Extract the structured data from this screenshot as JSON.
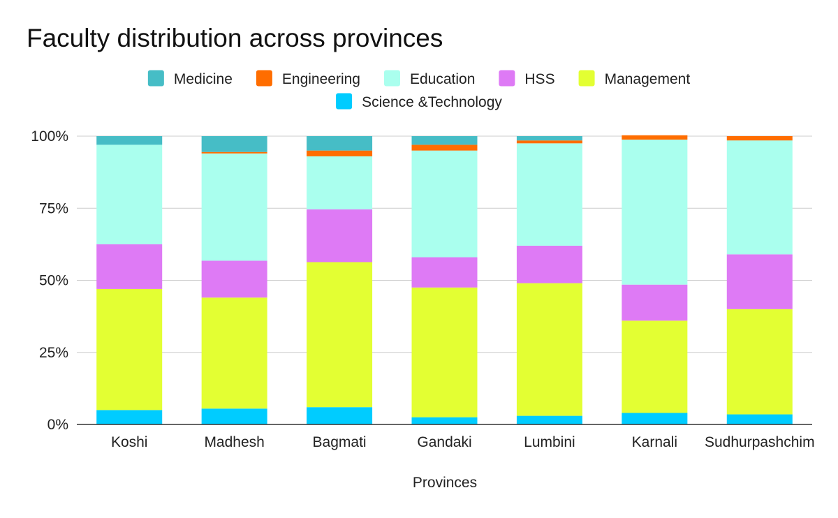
{
  "chart_data": {
    "type": "bar",
    "stacked": true,
    "normalized": true,
    "title": "Faculty distribution across provinces",
    "xlabel": "Provinces",
    "ylabel": "",
    "ylim": [
      0,
      100
    ],
    "y_ticks": [
      "0%",
      "25%",
      "50%",
      "75%",
      "100%"
    ],
    "y_tick_values": [
      0,
      25,
      50,
      75,
      100
    ],
    "grid": true,
    "legend_position": "top",
    "categories": [
      "Koshi",
      "Madhesh",
      "Bagmati",
      "Gandaki",
      "Lumbini",
      "Karnali",
      "Sudhurpashchim"
    ],
    "series": [
      {
        "name": "Science &Technology",
        "color": "#00ccff",
        "values": [
          5.0,
          5.5,
          6.0,
          2.5,
          3.0,
          4.0,
          3.5
        ]
      },
      {
        "name": "Management",
        "color": "#e3ff33",
        "values": [
          42.0,
          38.5,
          50.3,
          45.0,
          46.0,
          32.0,
          36.5
        ]
      },
      {
        "name": "HSS",
        "color": "#de7af5",
        "values": [
          15.5,
          12.8,
          18.3,
          10.5,
          13.0,
          12.5,
          19.0
        ]
      },
      {
        "name": "Education",
        "color": "#aaffee",
        "values": [
          34.5,
          37.2,
          18.4,
          37.0,
          35.5,
          50.3,
          39.5
        ]
      },
      {
        "name": "Engineering",
        "color": "#ff6d00",
        "values": [
          0.0,
          0.5,
          2.0,
          2.0,
          1.0,
          1.5,
          1.5
        ]
      },
      {
        "name": "Medicine",
        "color": "#46bdc6",
        "values": [
          3.0,
          5.5,
          5.0,
          3.0,
          1.5,
          0.0,
          0.0
        ]
      }
    ],
    "legend_order": [
      "Medicine",
      "Engineering",
      "Education",
      "HSS",
      "Management",
      "Science &Technology"
    ]
  }
}
